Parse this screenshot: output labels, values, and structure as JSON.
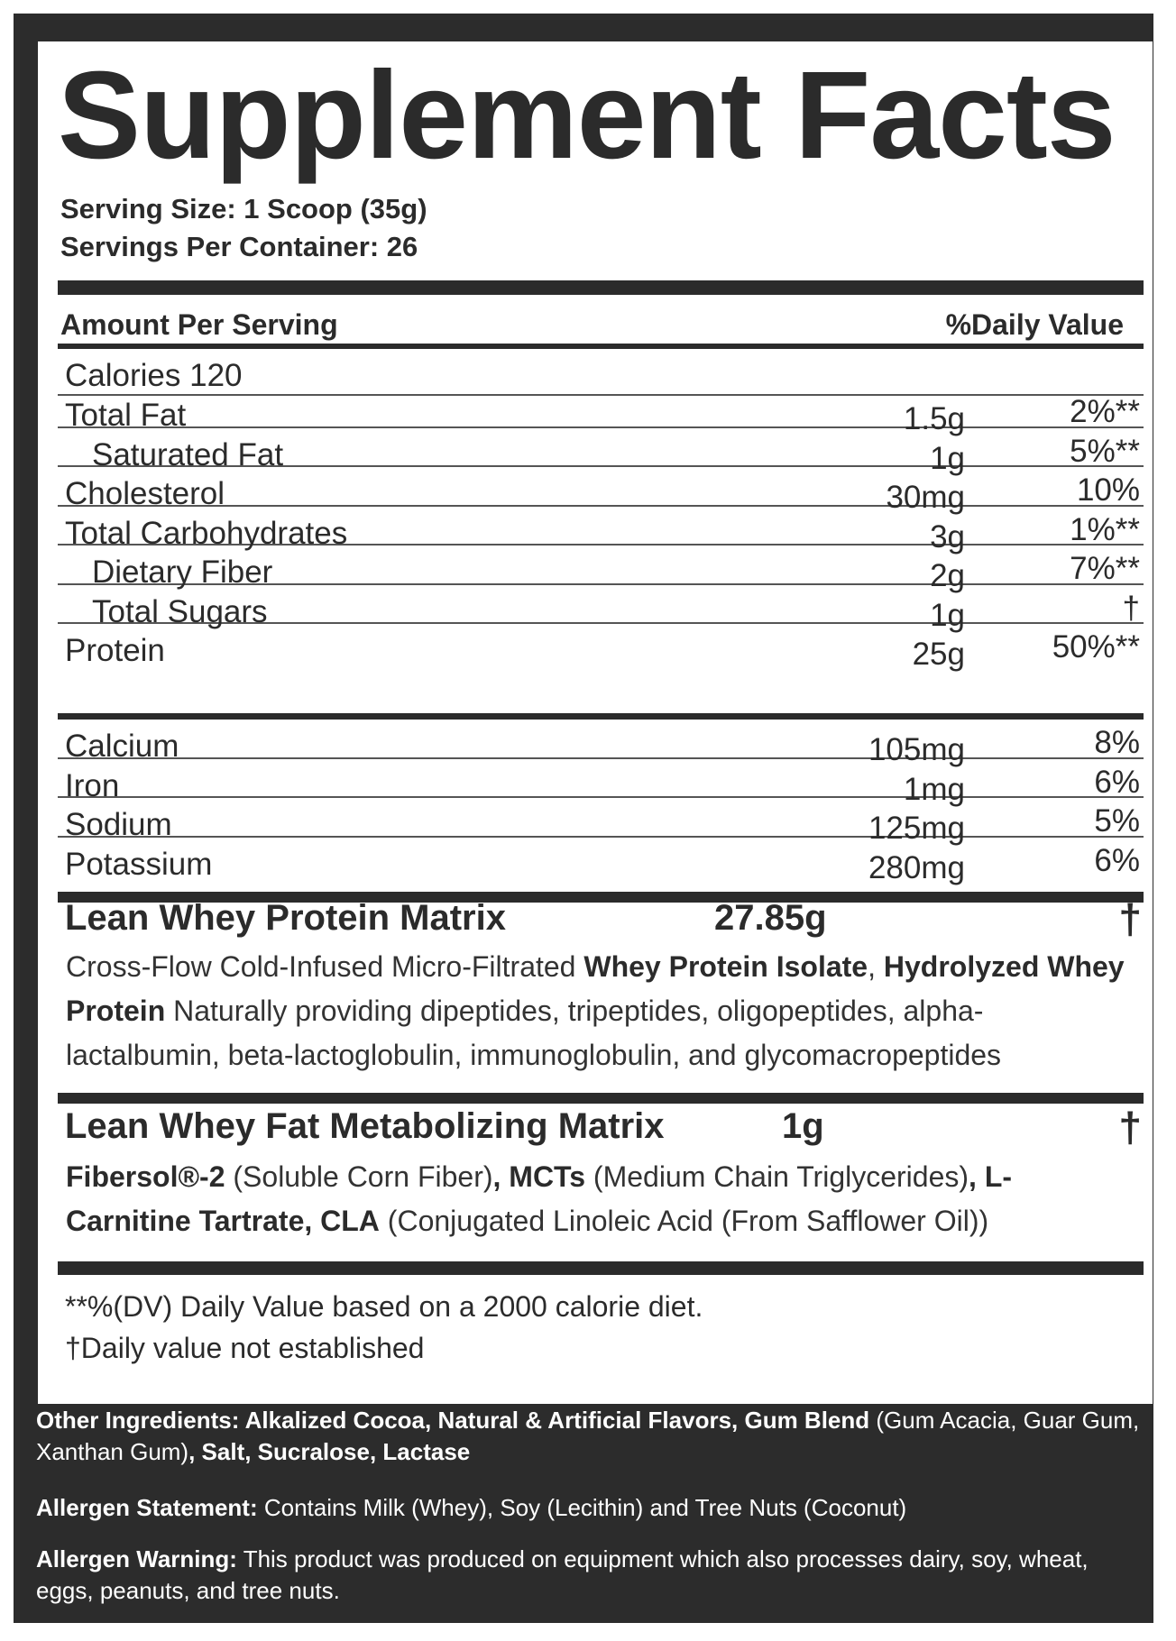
{
  "title": "Supplement Facts",
  "serving_size": "Serving Size: 1 Scoop (35g)",
  "servings_per_container": "Servings Per Container: 26",
  "header": {
    "amount": "Amount Per Serving",
    "dv": "%Daily Value"
  },
  "calories": "Calories 120",
  "nutrients": [
    {
      "name": "Total Fat",
      "amount": "1.5g",
      "dv": "2%**"
    },
    {
      "name": "Saturated Fat",
      "amount": "1g",
      "dv": "5%**"
    },
    {
      "name": "Cholesterol",
      "amount": "30mg",
      "dv": "10%"
    },
    {
      "name": "Total Carbohydrates",
      "amount": "3g",
      "dv": "1%**"
    },
    {
      "name": "Dietary Fiber",
      "amount": "2g",
      "dv": "7%**"
    },
    {
      "name": "Total Sugars",
      "amount": "1g",
      "dv": "†"
    },
    {
      "name": "Protein",
      "amount": "25g",
      "dv": "50%**"
    }
  ],
  "minerals": [
    {
      "name": "Calcium",
      "amount": "105mg",
      "dv": "8%"
    },
    {
      "name": "Iron",
      "amount": "1mg",
      "dv": "6%"
    },
    {
      "name": "Sodium",
      "amount": "125mg",
      "dv": "5%"
    },
    {
      "name": "Potassium",
      "amount": "280mg",
      "dv": "6%"
    }
  ],
  "matrix1": {
    "name": "Lean Whey Protein Matrix",
    "amount": "27.85g",
    "dv": "†",
    "desc": [
      {
        "t": "Cross-Flow Cold-Infused Micro-Filtrated ",
        "b": false
      },
      {
        "t": "Whey Protein Isolate",
        "b": true
      },
      {
        "t": ", ",
        "b": false
      },
      {
        "t": "Hydrolyzed Whey Protein",
        "b": true
      },
      {
        "t": " Naturally providing dipeptides, tripeptides, oligopeptides, alpha-lactalbumin, beta-lactoglobulin, immunoglobulin, and glycomacropeptides",
        "b": false
      }
    ]
  },
  "matrix2": {
    "name": "Lean Whey Fat Metabolizing Matrix",
    "amount": "1g",
    "dv": "†",
    "desc": [
      {
        "t": "Fibersol®-2",
        "b": true
      },
      {
        "t": " (Soluble Corn Fiber)",
        "b": false
      },
      {
        "t": ", MCTs",
        "b": true
      },
      {
        "t": " (Medium Chain Triglycerides)",
        "b": false
      },
      {
        "t": ", L-Carnitine Tartrate, CLA",
        "b": true
      },
      {
        "t": " (Conjugated Linoleic Acid (From Safflower Oil))",
        "b": false
      }
    ]
  },
  "footnotes": [
    "**%(DV) Daily Value based on a 2000 calorie diet.",
    "†Daily value not established"
  ],
  "other_ingredients": [
    {
      "t": "Other Ingredients: Alkalized Cocoa, Natural & Artificial Flavors, Gum Blend",
      "b": true
    },
    {
      "t": " (Gum Acacia, Guar Gum, Xanthan Gum)",
      "b": false
    },
    {
      "t": ", Salt, Sucralose, Lactase",
      "b": true
    }
  ],
  "allergen_statement": [
    {
      "t": "Allergen Statement:",
      "b": true
    },
    {
      "t": " Contains Milk (Whey), Soy (Lecithin) and Tree Nuts (Coconut)",
      "b": false
    }
  ],
  "allergen_warning": [
    {
      "t": "Allergen Warning:",
      "b": true
    },
    {
      "t": " This product was produced on equipment which also processes dairy, soy, wheat, eggs, peanuts, and tree nuts.",
      "b": false
    }
  ],
  "colors": {
    "panel": "#2c2c2c",
    "text": "#2b2b2b",
    "label_bg": "#ffffff"
  }
}
